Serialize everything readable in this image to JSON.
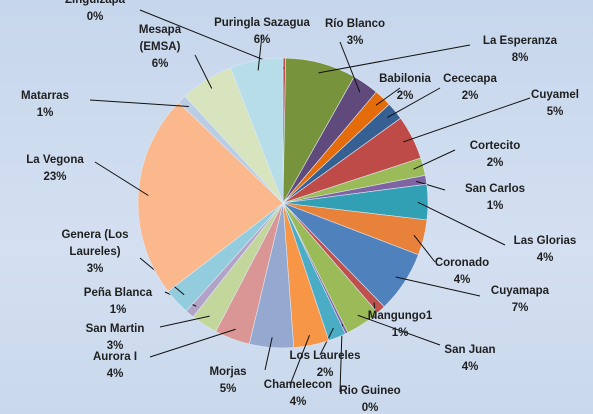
{
  "chart_data": {
    "type": "pie",
    "categories": [
      "Zinguizapa",
      "La Esperanza",
      "Río Blanco",
      "Babilonia",
      "Cececapa",
      "Cuyamel",
      "Cortecito",
      "San Carlos",
      "Las Glorias",
      "Coronado",
      "Cuyamapa",
      "Mangungo1",
      "San Juan",
      "Rio Guineo",
      "Los Laureles",
      "Chamelecon",
      "Morjas",
      "Aurora I",
      "San Martin",
      "Peña Blanca",
      "Genera (Los Laureles)",
      "La Vegona",
      "Matarras",
      "Mesapa (EMSA)",
      "Puringla Sazagua"
    ],
    "values": [
      0.3,
      8,
      3,
      2,
      2,
      5,
      2,
      1,
      4,
      4,
      7,
      1,
      4,
      0.3,
      2,
      4,
      5,
      4,
      3,
      1,
      3,
      23,
      1,
      6,
      6
    ],
    "value_labels": [
      "0%",
      "8%",
      "3%",
      "2%",
      "2%",
      "5%",
      "2%",
      "1%",
      "4%",
      "4%",
      "7%",
      "1%",
      "4%",
      "0%",
      "2%",
      "4%",
      "5%",
      "4%",
      "3%",
      "1%",
      "3%",
      "23%",
      "1%",
      "6%",
      "6%"
    ],
    "colors": [
      "#c0504d",
      "#77933c",
      "#604a7b",
      "#e46c0a",
      "#376092",
      "#be4b48",
      "#9bbb59",
      "#8064a2",
      "#31a0b5",
      "#e8823a",
      "#4f81bd",
      "#c0504d",
      "#9bbb59",
      "#8064a2",
      "#4bacc6",
      "#f79646",
      "#95a9d0",
      "#d99694",
      "#c3d69b",
      "#b3a2c7",
      "#93cddd",
      "#fab88c",
      "#b9cde5",
      "#d7e4bd",
      "#b7dee8"
    ]
  }
}
